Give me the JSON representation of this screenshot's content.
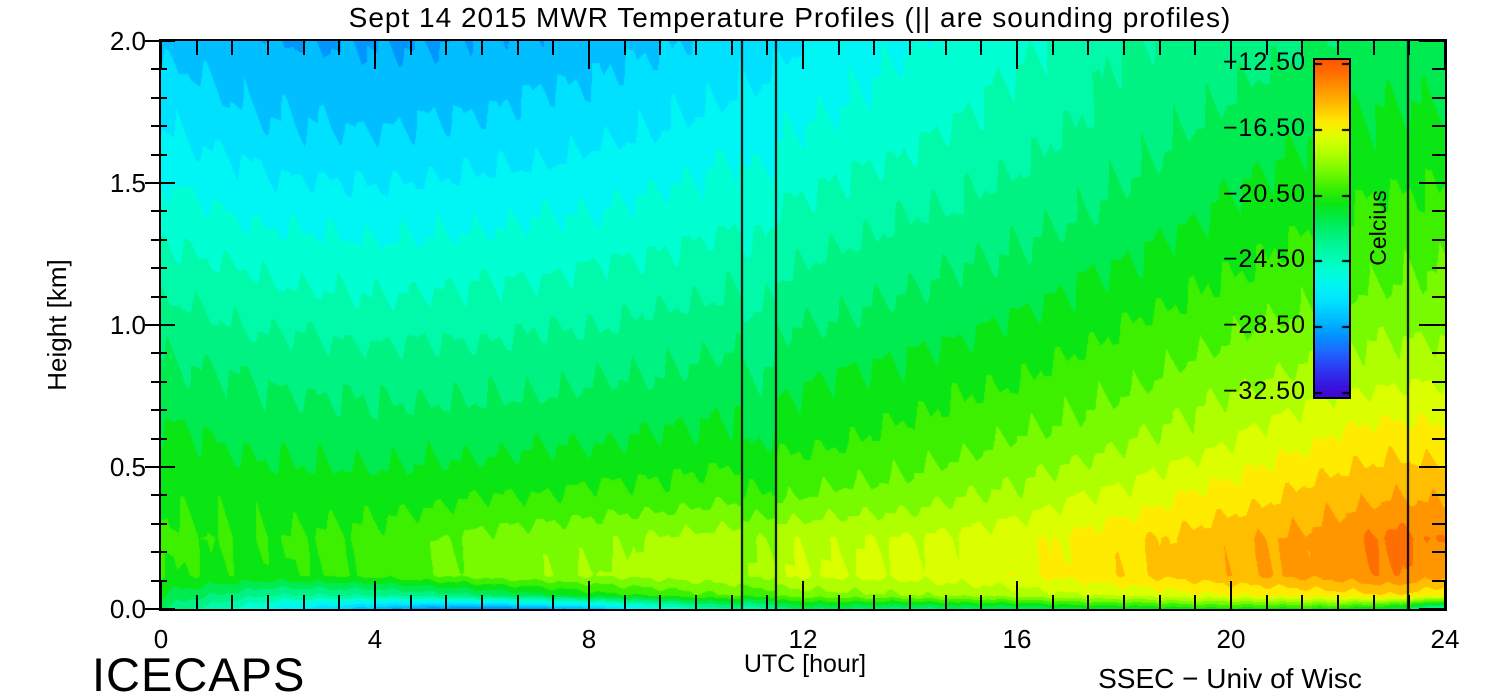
{
  "title": "Sept 14 2015 MWR Temperature Profiles (|| are sounding profiles)",
  "footer": {
    "left_logo": "ICECAPS",
    "credit": "SSEC − Univ of Wisc"
  },
  "axes": {
    "x": {
      "label": "UTC [hour]",
      "min": 0,
      "max": 24,
      "major_ticks": [
        0,
        4,
        8,
        12,
        16,
        20,
        24
      ],
      "major_tick_labels": [
        "0",
        "4",
        "8",
        "12",
        "16",
        "20",
        "24"
      ],
      "minor_step": 0.6666667
    },
    "y": {
      "label": "Height [km]",
      "min": 0,
      "max": 2,
      "major_ticks": [
        0.0,
        0.5,
        1.0,
        1.5,
        2.0
      ],
      "major_tick_labels": [
        "0.0",
        "0.5",
        "1.0",
        "1.5",
        "2.0"
      ],
      "minor_step": 0.1
    }
  },
  "colorbar": {
    "unit": "Celcius",
    "top_value": -12.25,
    "bottom_value": -32.75,
    "tick_values": [
      -12.5,
      -16.5,
      -20.5,
      -24.5,
      -28.5,
      -32.5
    ],
    "tick_labels": [
      "−12.50",
      "−16.50",
      "−20.50",
      "−24.50",
      "−28.50",
      "−32.50"
    ]
  },
  "sounding_lines_utc": [
    10.86,
    11.49,
    23.3
  ],
  "colors": {
    "axis": "#000000",
    "background": "#ffffff",
    "colormap_stops": [
      [
        -12,
        255,
        80,
        0
      ],
      [
        -13,
        255,
        110,
        0
      ],
      [
        -14,
        255,
        150,
        0
      ],
      [
        -15,
        255,
        190,
        0
      ],
      [
        -16,
        255,
        235,
        0
      ],
      [
        -17,
        220,
        255,
        0
      ],
      [
        -18,
        175,
        255,
        0
      ],
      [
        -19,
        120,
        250,
        0
      ],
      [
        -20,
        60,
        240,
        0
      ],
      [
        -21,
        10,
        230,
        20
      ],
      [
        -22,
        0,
        235,
        80
      ],
      [
        -23,
        0,
        242,
        130
      ],
      [
        -24,
        0,
        250,
        170
      ],
      [
        -25,
        0,
        255,
        210
      ],
      [
        -26,
        0,
        245,
        245
      ],
      [
        -27,
        0,
        225,
        255
      ],
      [
        -28,
        0,
        190,
        255
      ],
      [
        -29,
        0,
        150,
        255
      ],
      [
        -30,
        30,
        105,
        255
      ],
      [
        -31,
        45,
        60,
        245
      ],
      [
        -32,
        55,
        25,
        225
      ],
      [
        -33,
        65,
        0,
        205
      ]
    ]
  },
  "chart_data": {
    "type": "heatmap",
    "title": "Sept 14 2015 MWR Temperature Profiles (|| are sounding profiles)",
    "xlabel": "UTC [hour]",
    "ylabel": "Height [km]",
    "value_unit": "Celcius",
    "xlim": [
      0,
      24
    ],
    "ylim": [
      0,
      2
    ],
    "value_range": [
      -32.75,
      -12.25
    ],
    "contour_band_width_c": 1.0,
    "legend_position": "right-inside",
    "grid": false,
    "sounding_profile_hours": [
      10.86,
      11.49,
      23.3
    ],
    "x_hours": [
      0,
      2,
      4,
      6,
      8,
      10,
      12,
      14,
      16,
      18,
      20,
      22,
      23,
      24
    ],
    "y_heights_km": [
      0.0,
      0.05,
      0.12,
      0.25,
      0.4,
      0.6,
      0.85,
      1.1,
      1.4,
      1.7,
      2.0
    ],
    "temperature_c_rows_by_height": [
      [
        -22.5,
        -26.0,
        -28.5,
        -30.0,
        -28.5,
        -24.5,
        -22.5,
        -23.0,
        -22.5,
        -21.5,
        -21.0,
        -21.0,
        -22.0,
        -25.0
      ],
      [
        -21.5,
        -23.5,
        -23.5,
        -22.5,
        -21.0,
        -19.8,
        -19.0,
        -18.5,
        -18.0,
        -17.3,
        -16.5,
        -16.0,
        -15.5,
        -16.5
      ],
      [
        -20.5,
        -20.8,
        -20.2,
        -19.0,
        -18.4,
        -17.9,
        -17.4,
        -17.2,
        -16.7,
        -15.6,
        -14.7,
        -14.0,
        -13.5,
        -14.2
      ],
      [
        -20.3,
        -20.5,
        -20.2,
        -19.2,
        -18.8,
        -18.2,
        -17.7,
        -17.5,
        -16.9,
        -15.8,
        -14.8,
        -14.0,
        -13.2,
        -13.6
      ],
      [
        -20.6,
        -21.0,
        -21.0,
        -20.6,
        -20.3,
        -20.0,
        -19.5,
        -19.0,
        -18.2,
        -17.2,
        -16.0,
        -14.9,
        -14.5,
        -14.8
      ],
      [
        -21.3,
        -21.8,
        -22.0,
        -21.9,
        -21.6,
        -21.3,
        -20.8,
        -20.2,
        -19.5,
        -18.7,
        -17.6,
        -16.3,
        -16.0,
        -16.0
      ],
      [
        -22.3,
        -22.8,
        -23.0,
        -23.0,
        -22.8,
        -22.4,
        -21.8,
        -21.3,
        -20.7,
        -19.9,
        -19.0,
        -18.2,
        -18.0,
        -18.0
      ],
      [
        -23.5,
        -24.2,
        -24.5,
        -24.3,
        -24.0,
        -23.6,
        -23.0,
        -22.4,
        -21.8,
        -21.0,
        -20.2,
        -19.5,
        -19.3,
        -19.2
      ],
      [
        -25.0,
        -25.8,
        -26.0,
        -25.8,
        -25.5,
        -25.0,
        -24.3,
        -23.6,
        -23.0,
        -22.2,
        -21.3,
        -20.5,
        -20.3,
        -20.2
      ],
      [
        -26.5,
        -27.4,
        -27.6,
        -27.3,
        -26.9,
        -26.3,
        -25.5,
        -24.8,
        -24.0,
        -23.0,
        -22.2,
        -21.5,
        -21.3,
        -21.2
      ],
      [
        -27.8,
        -28.4,
        -28.6,
        -28.4,
        -28.0,
        -27.4,
        -26.5,
        -25.5,
        -24.8,
        -23.5,
        -23.0,
        -22.4,
        -22.2,
        -22.0
      ]
    ]
  }
}
